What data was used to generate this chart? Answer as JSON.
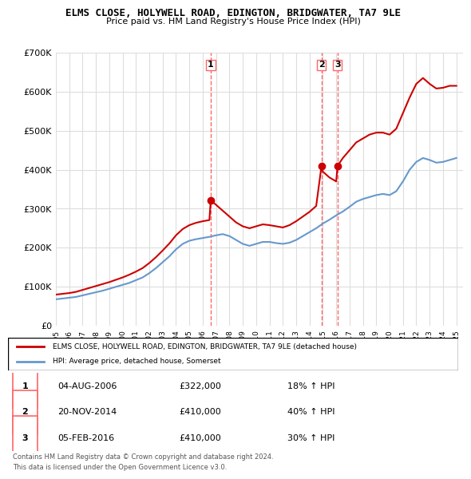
{
  "title": "ELMS CLOSE, HOLYWELL ROAD, EDINGTON, BRIDGWATER, TA7 9LE",
  "subtitle": "Price paid vs. HM Land Registry's House Price Index (HPI)",
  "legend_label_red": "ELMS CLOSE, HOLYWELL ROAD, EDINGTON, BRIDGWATER, TA7 9LE (detached house)",
  "legend_label_blue": "HPI: Average price, detached house, Somerset",
  "footer1": "Contains HM Land Registry data © Crown copyright and database right 2024.",
  "footer2": "This data is licensed under the Open Government Licence v3.0.",
  "sales": [
    {
      "num": 1,
      "date": "04-AUG-2006",
      "price": "£322,000",
      "pct": "18% ↑ HPI",
      "year": 2006.6,
      "value": 322000
    },
    {
      "num": 2,
      "date": "20-NOV-2014",
      "price": "£410,000",
      "pct": "40% ↑ HPI",
      "year": 2014.9,
      "value": 410000
    },
    {
      "num": 3,
      "date": "05-FEB-2016",
      "price": "£410,000",
      "pct": "30% ↑ HPI",
      "year": 2016.1,
      "value": 410000
    }
  ],
  "ylim": [
    0,
    700000
  ],
  "xlim_start": 1995,
  "xlim_end": 2025.5,
  "red_color": "#cc0000",
  "blue_color": "#6699cc",
  "dashed_color": "#ff6666",
  "background_color": "#ffffff",
  "grid_color": "#dddddd",
  "hpi_years": [
    1995,
    1995.5,
    1996,
    1996.5,
    1997,
    1997.5,
    1998,
    1998.5,
    1999,
    1999.5,
    2000,
    2000.5,
    2001,
    2001.5,
    2002,
    2002.5,
    2003,
    2003.5,
    2004,
    2004.5,
    2005,
    2005.5,
    2006,
    2006.5,
    2007,
    2007.5,
    2008,
    2008.5,
    2009,
    2009.5,
    2010,
    2010.5,
    2011,
    2011.5,
    2012,
    2012.5,
    2013,
    2013.5,
    2014,
    2014.5,
    2015,
    2015.5,
    2016,
    2016.5,
    2017,
    2017.5,
    2018,
    2018.5,
    2019,
    2019.5,
    2020,
    2020.5,
    2021,
    2021.5,
    2022,
    2022.5,
    2023,
    2023.5,
    2024,
    2024.5,
    2025
  ],
  "hpi_values": [
    68000,
    70000,
    72000,
    74000,
    78000,
    82000,
    86000,
    90000,
    95000,
    100000,
    105000,
    110000,
    117000,
    124000,
    135000,
    148000,
    163000,
    178000,
    196000,
    210000,
    218000,
    222000,
    225000,
    228000,
    232000,
    235000,
    230000,
    220000,
    210000,
    205000,
    210000,
    215000,
    215000,
    212000,
    210000,
    213000,
    220000,
    230000,
    240000,
    250000,
    262000,
    272000,
    283000,
    293000,
    305000,
    318000,
    325000,
    330000,
    335000,
    338000,
    335000,
    345000,
    370000,
    400000,
    420000,
    430000,
    425000,
    418000,
    420000,
    425000,
    430000
  ],
  "red_years": [
    1995,
    1995.5,
    1996,
    1996.5,
    1997,
    1997.5,
    1998,
    1998.5,
    1999,
    1999.5,
    2000,
    2000.5,
    2001,
    2001.5,
    2002,
    2002.5,
    2003,
    2003.5,
    2004,
    2004.5,
    2005,
    2005.5,
    2006,
    2006.5,
    2006.6,
    2007,
    2007.5,
    2008,
    2008.5,
    2009,
    2009.5,
    2010,
    2010.5,
    2011,
    2011.5,
    2012,
    2012.5,
    2013,
    2013.5,
    2014,
    2014.5,
    2014.9,
    2015,
    2015.5,
    2016,
    2016.1,
    2016.5,
    2017,
    2017.5,
    2018,
    2018.5,
    2019,
    2019.5,
    2020,
    2020.5,
    2021,
    2021.5,
    2022,
    2022.5,
    2023,
    2023.5,
    2024,
    2024.5,
    2025
  ],
  "red_values": [
    80000,
    82000,
    84000,
    87000,
    92000,
    97000,
    102000,
    107000,
    112000,
    118000,
    124000,
    131000,
    139000,
    148000,
    161000,
    176000,
    193000,
    211000,
    232000,
    248000,
    258000,
    264000,
    268000,
    271000,
    322000,
    310000,
    295000,
    280000,
    265000,
    255000,
    250000,
    255000,
    260000,
    258000,
    255000,
    252000,
    258000,
    268000,
    280000,
    292000,
    307000,
    410000,
    395000,
    380000,
    370000,
    410000,
    430000,
    450000,
    470000,
    480000,
    490000,
    495000,
    495000,
    490000,
    505000,
    545000,
    585000,
    620000,
    635000,
    620000,
    608000,
    610000,
    615000,
    615000
  ]
}
